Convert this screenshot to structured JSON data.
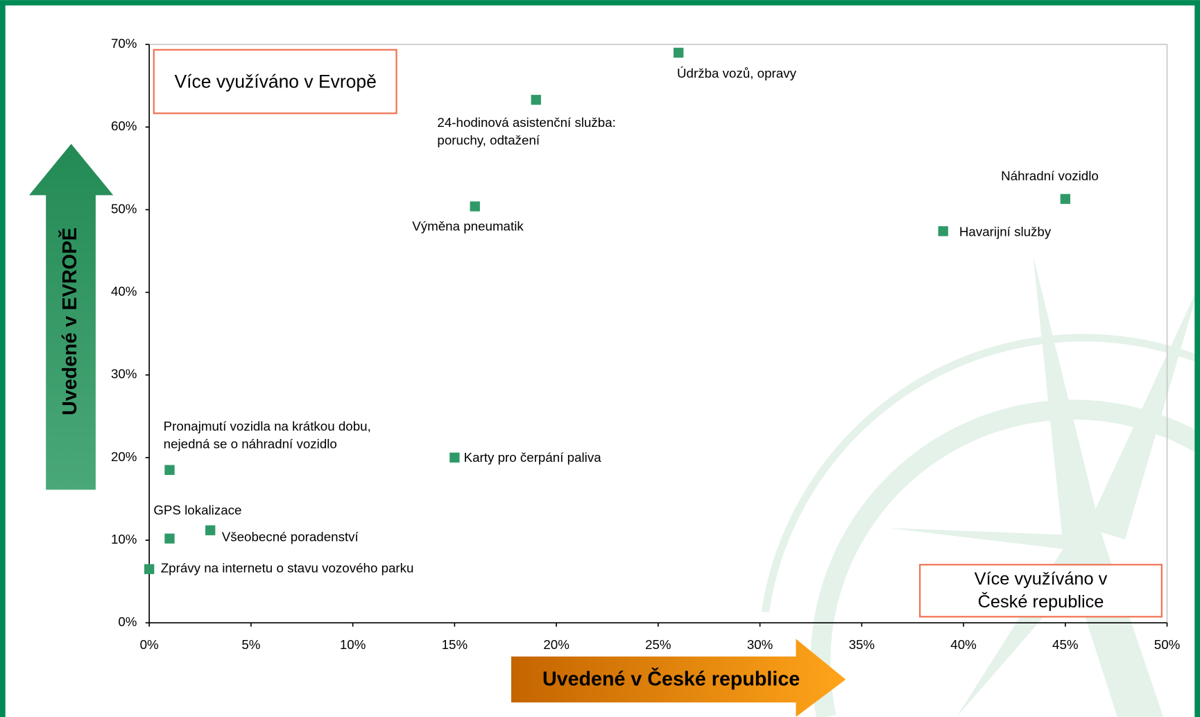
{
  "chart_data": {
    "type": "scatter",
    "color": "#2f9a68",
    "x": [
      26,
      19,
      16,
      45,
      39,
      1,
      15,
      1,
      3,
      0
    ],
    "values": [
      69,
      63.3,
      50.4,
      51.3,
      47.4,
      18.5,
      20,
      10.2,
      11.2,
      6.5
    ],
    "point_labels": [
      [
        "Údržba vozů, opravy"
      ],
      [
        "24-hodinová asistenční služba:",
        "poruchy, odtažení"
      ],
      [
        "Výměna pneumatik"
      ],
      [
        "Náhradní vozidlo"
      ],
      [
        "Havarijní služby"
      ],
      [
        "Pronajmutí vozidla na krátkou dobu,",
        "nejedná se o náhradní vozidlo"
      ],
      [
        "Karty pro čerpání paliva"
      ],
      [
        "GPS lokalizace"
      ],
      [
        "Všeobecné poradenství"
      ],
      [
        "Zprávy na internetu o stavu vozového parku"
      ]
    ],
    "xlim": [
      0,
      50
    ],
    "xticks": [
      {
        "value": 0,
        "label": "0%"
      },
      {
        "value": 5,
        "label": "5%"
      },
      {
        "value": 10,
        "label": "10%"
      },
      {
        "value": 15,
        "label": "15%"
      },
      {
        "value": 20,
        "label": "20%"
      },
      {
        "value": 25,
        "label": "25%"
      },
      {
        "value": 30,
        "label": "30%"
      },
      {
        "value": 35,
        "label": "35%"
      },
      {
        "value": 40,
        "label": "40%"
      },
      {
        "value": 45,
        "label": "45%"
      },
      {
        "value": 50,
        "label": "50%"
      }
    ],
    "ylim": [
      0,
      70
    ],
    "yticks": [
      {
        "value": 0,
        "label": "0%"
      },
      {
        "value": 10,
        "label": "10%"
      },
      {
        "value": 20,
        "label": "20%"
      },
      {
        "value": 30,
        "label": "30%"
      },
      {
        "value": 40,
        "label": "40%"
      },
      {
        "value": 50,
        "label": "50%"
      },
      {
        "value": 60,
        "label": "60%"
      },
      {
        "value": 70,
        "label": "70%"
      }
    ],
    "x_label": "Uvedené v České republice",
    "y_label": "Uvedené v EVROPĚ",
    "annotations": [
      [
        "Více využíváno v  Evropě"
      ],
      [
        "Více využíváno v",
        "České republice"
      ]
    ]
  }
}
